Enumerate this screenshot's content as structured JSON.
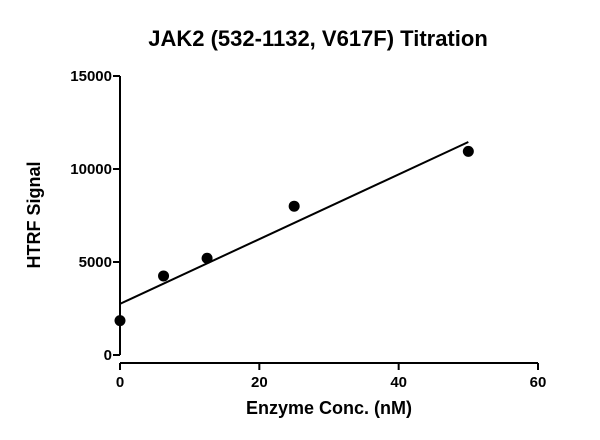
{
  "chart_data": {
    "type": "scatter",
    "title": "JAK2 (532-1132, V617F) Titration",
    "xlabel": "Enzyme Conc. (nM)",
    "ylabel": "HTRF Signal",
    "xlim": [
      0,
      60
    ],
    "ylim": [
      0,
      15000
    ],
    "xticks": [
      0,
      20,
      40,
      60
    ],
    "yticks": [
      0,
      5000,
      10000,
      15000
    ],
    "xtick_labels": [
      "0",
      "20",
      "40",
      "60"
    ],
    "ytick_labels": [
      "0",
      "5000",
      "10000",
      "15000"
    ],
    "grid": false,
    "series": [
      {
        "x": [
          0,
          6.25,
          12.5,
          25,
          50
        ],
        "y": [
          1850,
          4250,
          5200,
          8000,
          10950
        ]
      }
    ],
    "fit_line": {
      "type": "linear",
      "x": [
        0,
        50
      ],
      "y": [
        2750,
        11450
      ]
    }
  }
}
